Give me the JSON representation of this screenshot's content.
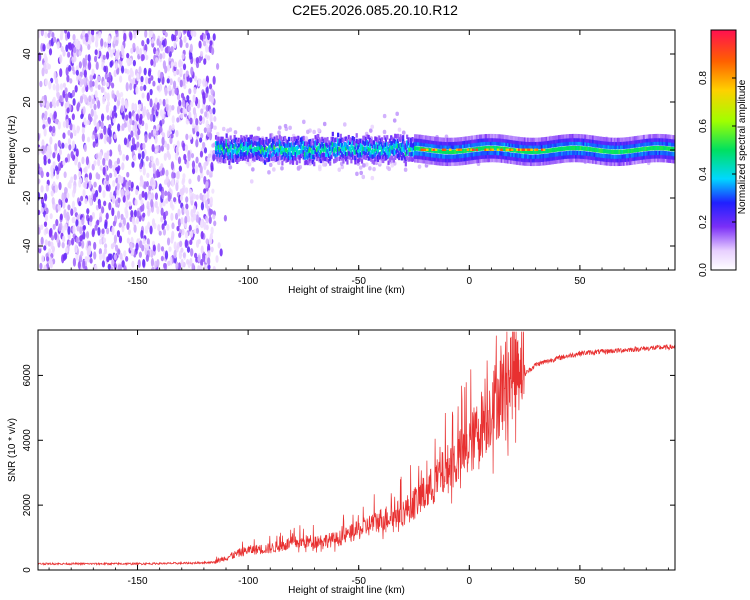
{
  "title": "C2E5.2026.085.20.10.R12",
  "chart_data": [
    {
      "type": "heatmap",
      "title": "C2E5.2026.085.20.10.R12",
      "xlabel": "Height of straight line (km)",
      "ylabel": "Frequency (Hz)",
      "xlim": [
        -195,
        93
      ],
      "ylim": [
        -50,
        50
      ],
      "xticks": [
        -150,
        -100,
        -50,
        0,
        50
      ],
      "yticks": [
        -40,
        -20,
        0,
        20,
        40
      ],
      "colorbar": {
        "label": "Normalized spectral amplitude",
        "range": [
          0,
          1
        ],
        "ticks": [
          0.0,
          0.2,
          0.4,
          0.6,
          0.8
        ]
      },
      "regions": [
        {
          "x_range": [
            -195,
            -115
          ],
          "description": "broadband noise"
        },
        {
          "x_range": [
            -115,
            -25
          ],
          "center_hz": 0,
          "width_hz": 10,
          "amplitude": 0.45
        },
        {
          "x_range": [
            -25,
            93
          ],
          "center_hz": 0,
          "width_hz": 6,
          "amplitude": 0.5
        },
        {
          "x_range": [
            -22,
            35
          ],
          "center_hz": 0,
          "amplitude": 0.95
        }
      ]
    },
    {
      "type": "line",
      "xlabel": "Height of straight line (km)",
      "ylabel": "SNR (10 * v/v)",
      "xlim": [
        -195,
        93
      ],
      "ylim": [
        0,
        7400
      ],
      "xticks": [
        -150,
        -100,
        -50,
        0,
        50
      ],
      "yticks": [
        0,
        2000,
        4000,
        6000
      ],
      "color": "#e83030",
      "series": [
        {
          "name": "SNR",
          "x": [
            -195,
            -150,
            -125,
            -115,
            -105,
            -100,
            -90,
            -80,
            -70,
            -60,
            -50,
            -40,
            -30,
            -20,
            -10,
            0,
            5,
            10,
            15,
            20,
            25,
            30,
            40,
            50,
            60,
            70,
            80,
            93
          ],
          "y": [
            180,
            180,
            200,
            230,
            450,
            550,
            600,
            750,
            800,
            850,
            1100,
            1400,
            1600,
            2100,
            2800,
            3400,
            4000,
            4500,
            5000,
            5600,
            6000,
            6300,
            6500,
            6650,
            6700,
            6750,
            6800,
            6850
          ]
        }
      ]
    }
  ],
  "colors": {
    "noise": "#7020f0",
    "line": "#e83030"
  }
}
